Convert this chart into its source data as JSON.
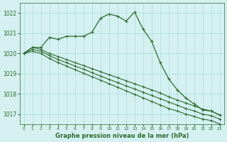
{
  "x": [
    0,
    1,
    2,
    3,
    4,
    5,
    6,
    7,
    8,
    9,
    10,
    11,
    12,
    13,
    14,
    15,
    16,
    17,
    18,
    19,
    20,
    21,
    22,
    23
  ],
  "line_main": [
    1020.0,
    1020.3,
    1020.3,
    1020.8,
    1020.7,
    1020.85,
    1020.85,
    1020.85,
    1021.05,
    1021.75,
    1021.95,
    1021.85,
    1021.6,
    1022.05,
    1021.2,
    1020.6,
    1019.55,
    1018.75,
    1018.2,
    1017.8,
    1017.5,
    1017.2,
    1017.15,
    1016.95
  ],
  "line_a": [
    1020.0,
    1020.3,
    1020.2,
    1020.0,
    1019.85,
    1019.7,
    1019.55,
    1019.4,
    1019.25,
    1019.1,
    1018.95,
    1018.8,
    1018.65,
    1018.5,
    1018.35,
    1018.2,
    1018.05,
    1017.85,
    1017.7,
    1017.55,
    1017.4,
    1017.25,
    1017.15,
    1016.95
  ],
  "line_b": [
    1020.0,
    1020.2,
    1020.1,
    1019.9,
    1019.7,
    1019.55,
    1019.38,
    1019.22,
    1019.05,
    1018.88,
    1018.72,
    1018.56,
    1018.4,
    1018.24,
    1018.08,
    1017.92,
    1017.76,
    1017.6,
    1017.44,
    1017.28,
    1017.15,
    1017.0,
    1016.92,
    1016.75
  ],
  "line_c": [
    1020.0,
    1020.1,
    1020.0,
    1019.75,
    1019.55,
    1019.38,
    1019.2,
    1019.02,
    1018.85,
    1018.68,
    1018.5,
    1018.33,
    1018.15,
    1017.98,
    1017.8,
    1017.63,
    1017.45,
    1017.28,
    1017.15,
    1017.0,
    1016.88,
    1016.75,
    1016.68,
    1016.5
  ],
  "bg_color": "#d4f0f0",
  "grid_color": "#aadddd",
  "line_color": "#2d6a2d",
  "title": "Graphe pression niveau de la mer (hPa)",
  "ylabel_ticks": [
    1017,
    1018,
    1019,
    1020,
    1021,
    1022
  ],
  "xlim": [
    -0.5,
    23.5
  ],
  "ylim": [
    1016.5,
    1022.5
  ]
}
